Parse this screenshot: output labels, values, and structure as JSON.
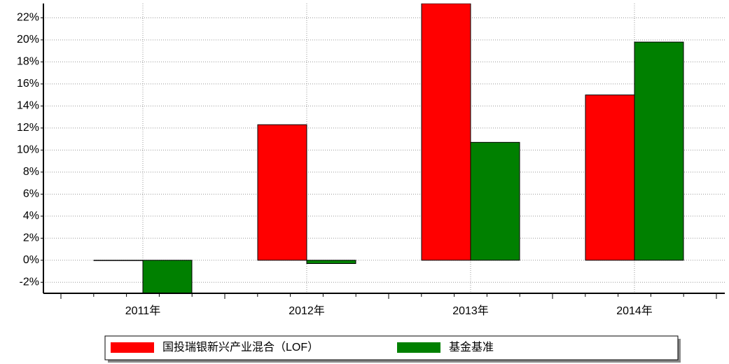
{
  "chart_data": {
    "type": "bar",
    "categories": [
      "2011年",
      "2012年",
      "2013年",
      "2014年"
    ],
    "series": [
      {
        "name": "国投瑞银新兴产业混合（LOF）",
        "color": "#ff0000",
        "values": [
          0,
          12.3,
          23.3,
          15.0
        ]
      },
      {
        "name": "基金基准",
        "color": "#008000",
        "values": [
          -3.0,
          -0.3,
          10.7,
          19.8
        ]
      }
    ],
    "ylim": [
      -3.0,
      23.3
    ],
    "yticks": [
      {
        "value": -2,
        "label": "-2%"
      },
      {
        "value": 0,
        "label": "0%"
      },
      {
        "value": 2,
        "label": "2%"
      },
      {
        "value": 4,
        "label": "4%"
      },
      {
        "value": 6,
        "label": "6%"
      },
      {
        "value": 8,
        "label": "8%"
      },
      {
        "value": 10,
        "label": "10%"
      },
      {
        "value": 12,
        "label": "12%"
      },
      {
        "value": 14,
        "label": "14%"
      },
      {
        "value": 16,
        "label": "16%"
      },
      {
        "value": 18,
        "label": "18%"
      },
      {
        "value": 20,
        "label": "20%"
      },
      {
        "value": 22,
        "label": "22%"
      }
    ],
    "grid": true
  }
}
